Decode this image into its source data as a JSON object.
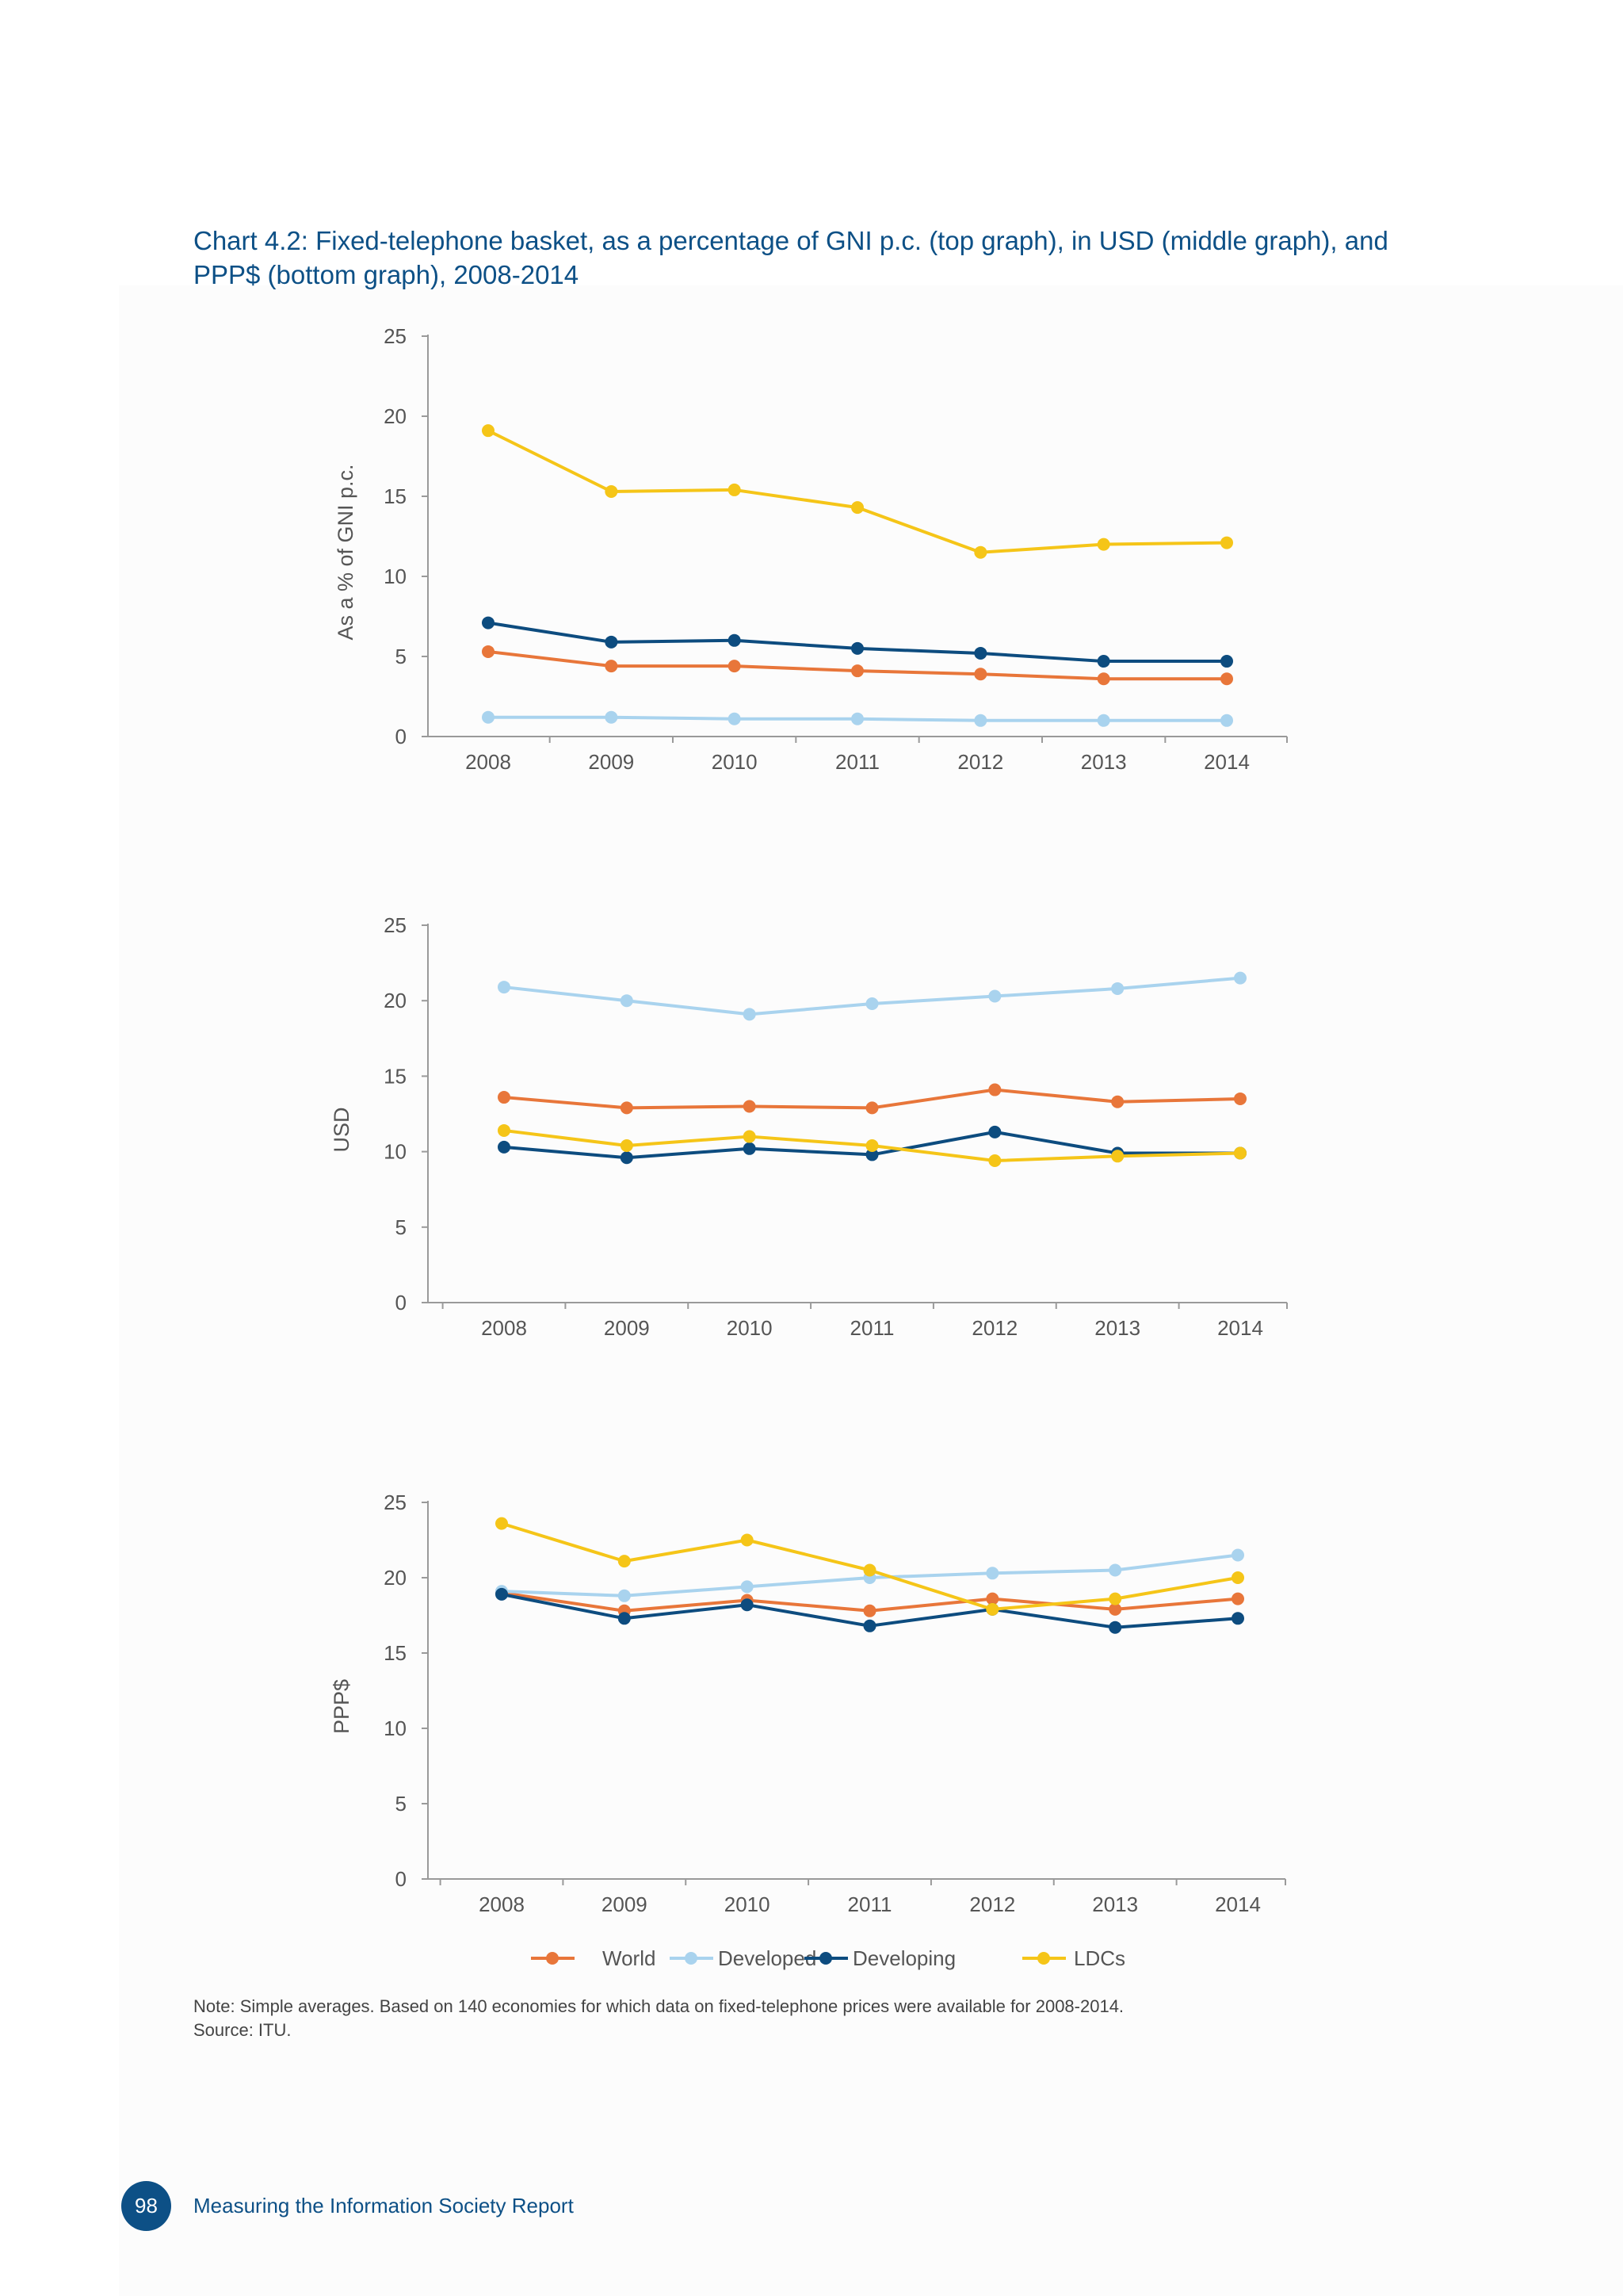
{
  "title_line1": "Chart 4.2:   Fixed-telephone basket, as a percentage of GNI p.c. (top graph), in USD (middle graph), and",
  "title_line2": "PPP$ (bottom graph), 2008-2014",
  "chart_data": [
    {
      "type": "line",
      "ylabel": "As a % of GNI p.c.",
      "ylim": [
        0,
        25
      ],
      "yticks": [
        0,
        5,
        10,
        15,
        20,
        25
      ],
      "x": [
        "2008",
        "2009",
        "2010",
        "2011",
        "2012",
        "2013",
        "2014"
      ],
      "series": [
        {
          "name": "World",
          "color": "#e8763a",
          "values": [
            5.3,
            4.4,
            4.4,
            4.1,
            3.9,
            3.6,
            3.6
          ]
        },
        {
          "name": "Developed",
          "color": "#a9d3ee",
          "values": [
            1.2,
            1.2,
            1.1,
            1.1,
            1.0,
            1.0,
            1.0
          ]
        },
        {
          "name": "Developing",
          "color": "#0d4c7f",
          "values": [
            7.1,
            5.9,
            6.0,
            5.5,
            5.2,
            4.7,
            4.7
          ]
        },
        {
          "name": "LDCs",
          "color": "#f5c518",
          "values": [
            19.1,
            15.3,
            15.4,
            14.3,
            11.5,
            12.0,
            12.1
          ]
        }
      ]
    },
    {
      "type": "line",
      "ylabel": "USD",
      "ylim": [
        0,
        25
      ],
      "yticks": [
        0,
        5,
        10,
        15,
        20,
        25
      ],
      "x": [
        "2008",
        "2009",
        "2010",
        "2011",
        "2012",
        "2013",
        "2014"
      ],
      "series": [
        {
          "name": "World",
          "color": "#e8763a",
          "values": [
            13.6,
            12.9,
            13.0,
            12.9,
            14.1,
            13.3,
            13.5
          ]
        },
        {
          "name": "Developed",
          "color": "#a9d3ee",
          "values": [
            20.9,
            20.0,
            19.1,
            19.8,
            20.3,
            20.8,
            21.5
          ]
        },
        {
          "name": "Developing",
          "color": "#0d4c7f",
          "values": [
            10.3,
            9.6,
            10.2,
            9.8,
            11.3,
            9.9,
            9.9
          ]
        },
        {
          "name": "LDCs",
          "color": "#f5c518",
          "values": [
            11.4,
            10.4,
            11.0,
            10.4,
            9.4,
            9.7,
            9.9
          ]
        }
      ]
    },
    {
      "type": "line",
      "ylabel": "PPP$",
      "ylim": [
        0,
        25
      ],
      "yticks": [
        0,
        5,
        10,
        15,
        20,
        25
      ],
      "x": [
        "2008",
        "2009",
        "2010",
        "2011",
        "2012",
        "2013",
        "2014"
      ],
      "series": [
        {
          "name": "World",
          "color": "#e8763a",
          "values": [
            19.0,
            17.8,
            18.5,
            17.8,
            18.6,
            17.9,
            18.6
          ]
        },
        {
          "name": "Developed",
          "color": "#a9d3ee",
          "values": [
            19.1,
            18.8,
            19.4,
            20.0,
            20.3,
            20.5,
            21.5
          ]
        },
        {
          "name": "Developing",
          "color": "#0d4c7f",
          "values": [
            18.9,
            17.3,
            18.2,
            16.8,
            17.9,
            16.7,
            17.3
          ]
        },
        {
          "name": "LDCs",
          "color": "#f5c518",
          "values": [
            23.6,
            21.1,
            22.5,
            20.5,
            17.9,
            18.6,
            20.0
          ]
        }
      ]
    }
  ],
  "legend": [
    {
      "name": "World",
      "color": "#e8763a"
    },
    {
      "name": "Developed",
      "color": "#a9d3ee"
    },
    {
      "name": "Developing",
      "color": "#0d4c7f"
    },
    {
      "name": "LDCs",
      "color": "#f5c518"
    }
  ],
  "note": "Note: Simple averages. Based on 140 economies for which data on fixed-telephone prices were available for 2008-2014.",
  "source": "Source: ITU.",
  "page_number": "98",
  "footer_title": "Measuring the Information Society Report"
}
